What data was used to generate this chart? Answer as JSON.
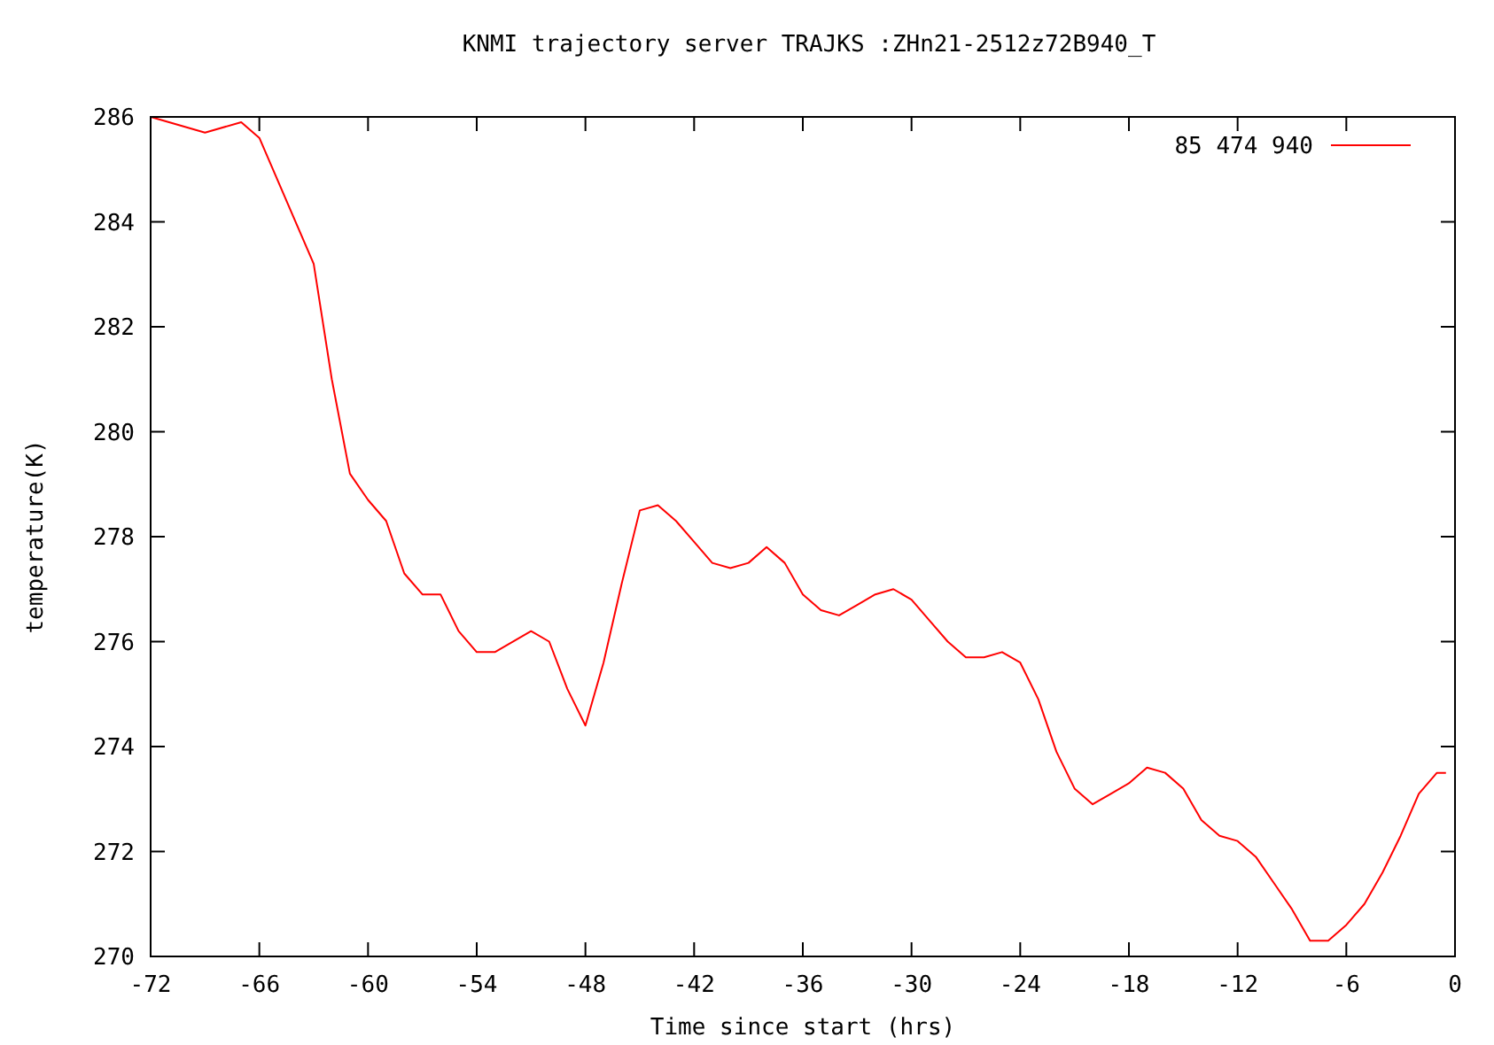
{
  "chart_data": {
    "type": "line",
    "title": "KNMI trajectory server TRAJKS :ZHn21-2512z72B940_T",
    "xlabel": "Time since start (hrs)",
    "ylabel": "temperature(K)",
    "xlim": [
      -72,
      0
    ],
    "xticks": [
      -72,
      -66,
      -60,
      -54,
      -48,
      -42,
      -36,
      -30,
      -24,
      -18,
      -12,
      -6,
      0
    ],
    "ylim": [
      270,
      286
    ],
    "yticks": [
      270,
      272,
      274,
      276,
      278,
      280,
      282,
      284,
      286
    ],
    "grid": false,
    "legend": "top right",
    "x": [
      -72,
      -69,
      -67,
      -66,
      -63,
      -62,
      -61,
      -60,
      -59,
      -58,
      -57,
      -56,
      -55,
      -54,
      -53,
      -51,
      -50,
      -49,
      -48,
      -47,
      -46,
      -45,
      -44,
      -43,
      -42,
      -41,
      -40,
      -39,
      -38,
      -37,
      -36,
      -35,
      -34,
      -33,
      -32,
      -31,
      -30,
      -29,
      -28,
      -27,
      -26,
      -25,
      -24,
      -23,
      -22,
      -21,
      -20,
      -19,
      -18,
      -17,
      -16,
      -15,
      -14,
      -13,
      -12,
      -11,
      -10,
      -9,
      -8,
      -7,
      -6,
      -5,
      -4,
      -3,
      -2,
      -1,
      -0.5
    ],
    "series": [
      {
        "name": "85 474 940",
        "color": "#ff0000",
        "values": [
          286.0,
          285.7,
          285.9,
          285.6,
          283.2,
          281.0,
          279.2,
          278.7,
          278.3,
          277.3,
          276.9,
          276.9,
          276.2,
          275.8,
          275.8,
          276.2,
          276.0,
          275.1,
          274.4,
          275.6,
          277.1,
          278.5,
          278.6,
          278.3,
          277.9,
          277.5,
          277.4,
          277.5,
          277.8,
          277.5,
          276.9,
          276.6,
          276.5,
          276.7,
          276.9,
          277.0,
          276.8,
          276.4,
          276.0,
          275.7,
          275.7,
          275.8,
          275.6,
          274.9,
          273.9,
          273.2,
          272.9,
          273.1,
          273.3,
          273.6,
          273.5,
          273.2,
          272.6,
          272.3,
          272.2,
          271.9,
          271.4,
          270.9,
          270.3,
          270.3,
          270.6,
          271.0,
          271.6,
          272.3,
          273.1,
          273.5,
          273.5
        ]
      }
    ]
  }
}
